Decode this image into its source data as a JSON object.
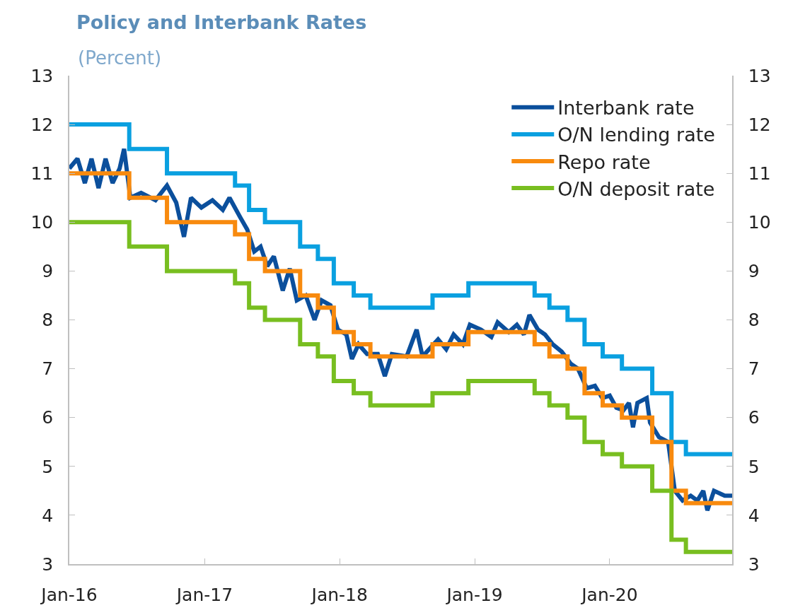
{
  "chart_data": {
    "type": "line",
    "title": "Policy and Interbank Rates",
    "subtitle": "(Percent)",
    "xlim": [
      "2016-01-01",
      "2020-11-27"
    ],
    "xticks": [
      {
        "value": "2016-01-01",
        "label": "Jan-16"
      },
      {
        "value": "2017-01-01",
        "label": "Jan-17"
      },
      {
        "value": "2018-01-01",
        "label": "Jan-18"
      },
      {
        "value": "2019-01-01",
        "label": "Jan-19"
      },
      {
        "value": "2020-01-01",
        "label": "Jan-20"
      }
    ],
    "ylim": [
      3,
      13
    ],
    "yticks": [
      3,
      4,
      5,
      6,
      7,
      8,
      9,
      10,
      11,
      12,
      13
    ],
    "y2lim": [
      3,
      13
    ],
    "y2ticks": [
      3,
      4,
      5,
      6,
      7,
      8,
      9,
      10,
      11,
      12,
      13
    ],
    "grid": false,
    "legend": "top right",
    "marker": "none",
    "line_style": "solid",
    "series": [
      {
        "name": "Interbank rate",
        "type": "line",
        "color": "#0b4f9c",
        "x": [
          "2016-01-01",
          "2016-01-23",
          "2016-02-12",
          "2016-03-01",
          "2016-03-20",
          "2016-04-08",
          "2016-04-27",
          "2016-05-16",
          "2016-05-28",
          "2016-06-14",
          "2016-07-13",
          "2016-08-21",
          "2016-09-21",
          "2016-10-16",
          "2016-11-06",
          "2016-11-25",
          "2016-12-23",
          "2017-01-22",
          "2017-02-19",
          "2017-03-09",
          "2017-04-07",
          "2017-04-26",
          "2017-05-15",
          "2017-06-01",
          "2017-06-19",
          "2017-07-07",
          "2017-07-31",
          "2017-08-19",
          "2017-09-07",
          "2017-10-01",
          "2017-10-25",
          "2017-11-13",
          "2017-12-07",
          "2017-12-27",
          "2018-01-19",
          "2018-02-03",
          "2018-02-21",
          "2018-03-16",
          "2018-04-14",
          "2018-05-03",
          "2018-05-22",
          "2018-07-01",
          "2018-07-28",
          "2018-08-13",
          "2018-09-24",
          "2018-10-16",
          "2018-11-05",
          "2018-11-30",
          "2018-12-19",
          "2019-01-18",
          "2019-02-15",
          "2019-03-04",
          "2019-04-03",
          "2019-04-25",
          "2019-05-14",
          "2019-05-29",
          "2019-06-21",
          "2019-07-10",
          "2019-07-31",
          "2019-08-24",
          "2019-09-18",
          "2019-10-07",
          "2019-10-31",
          "2019-11-22",
          "2019-12-12",
          "2020-01-01",
          "2020-01-19",
          "2020-02-07",
          "2020-02-22",
          "2020-03-04",
          "2020-03-16",
          "2020-04-10",
          "2020-04-19",
          "2020-05-13",
          "2020-06-07",
          "2020-06-25",
          "2020-07-16",
          "2020-08-07",
          "2020-08-25",
          "2020-09-10",
          "2020-09-21",
          "2020-10-09",
          "2020-11-07",
          "2020-11-27"
        ],
        "values": [
          11.1,
          11.3,
          10.8,
          11.3,
          10.7,
          11.3,
          10.8,
          11.1,
          11.5,
          10.5,
          10.6,
          10.45,
          10.75,
          10.4,
          9.7,
          10.5,
          10.3,
          10.45,
          10.25,
          10.5,
          10.1,
          9.85,
          9.4,
          9.5,
          9.1,
          9.3,
          8.6,
          9.05,
          8.4,
          8.5,
          8.0,
          8.4,
          8.3,
          7.8,
          7.7,
          7.2,
          7.5,
          7.3,
          7.3,
          6.85,
          7.3,
          7.25,
          7.8,
          7.25,
          7.6,
          7.4,
          7.7,
          7.5,
          7.9,
          7.8,
          7.65,
          7.95,
          7.75,
          7.9,
          7.7,
          8.1,
          7.8,
          7.7,
          7.5,
          7.35,
          7.1,
          7.0,
          6.6,
          6.65,
          6.4,
          6.45,
          6.2,
          6.15,
          6.3,
          5.8,
          6.3,
          6.4,
          5.9,
          5.6,
          5.5,
          4.5,
          4.3,
          4.4,
          4.3,
          4.5,
          4.1,
          4.5,
          4.4,
          4.4
        ]
      },
      {
        "name": "O/N lending rate",
        "type": "step",
        "color": "#0aa0e0",
        "x": [
          "2016-01-01",
          "2016-06-11",
          "2016-09-21",
          "2017-03-24",
          "2017-05-01",
          "2017-06-13",
          "2017-09-16",
          "2017-11-03",
          "2017-12-16",
          "2018-02-08",
          "2018-03-25",
          "2018-09-09",
          "2018-12-15",
          "2019-06-12",
          "2019-07-22",
          "2019-09-09",
          "2019-10-25",
          "2019-12-13",
          "2020-02-03",
          "2020-04-25",
          "2020-06-16",
          "2020-07-25",
          "2020-11-27"
        ],
        "values": [
          12,
          11.5,
          11,
          10.75,
          10.25,
          10,
          9.5,
          9.25,
          8.75,
          8.5,
          8.25,
          8.5,
          8.75,
          8.5,
          8.25,
          8,
          7.5,
          7.25,
          7,
          6.5,
          5.5,
          5.25,
          5.25
        ]
      },
      {
        "name": "Repo rate",
        "type": "step",
        "color": "#f88a0e",
        "x": [
          "2016-01-01",
          "2016-06-11",
          "2016-09-21",
          "2017-03-24",
          "2017-05-01",
          "2017-06-13",
          "2017-09-16",
          "2017-11-03",
          "2017-12-16",
          "2018-02-08",
          "2018-03-25",
          "2018-09-09",
          "2018-12-15",
          "2019-06-12",
          "2019-07-22",
          "2019-09-09",
          "2019-10-25",
          "2019-12-13",
          "2020-02-03",
          "2020-04-25",
          "2020-06-16",
          "2020-07-25",
          "2020-11-27"
        ],
        "values": [
          11,
          10.5,
          10,
          9.75,
          9.25,
          9,
          8.5,
          8.25,
          7.75,
          7.5,
          7.25,
          7.5,
          7.75,
          7.5,
          7.25,
          7,
          6.5,
          6.25,
          6,
          5.5,
          4.5,
          4.25,
          4.25
        ]
      },
      {
        "name": "O/N deposit rate",
        "type": "step",
        "color": "#78be20",
        "x": [
          "2016-01-01",
          "2016-06-11",
          "2016-09-21",
          "2017-03-24",
          "2017-05-01",
          "2017-06-13",
          "2017-09-16",
          "2017-11-03",
          "2017-12-16",
          "2018-02-08",
          "2018-03-25",
          "2018-09-09",
          "2018-12-15",
          "2019-06-12",
          "2019-07-22",
          "2019-09-09",
          "2019-10-25",
          "2019-12-13",
          "2020-02-03",
          "2020-04-25",
          "2020-06-16",
          "2020-07-25",
          "2020-11-27"
        ],
        "values": [
          10,
          9.5,
          9,
          8.75,
          8.25,
          8,
          7.5,
          7.25,
          6.75,
          6.5,
          6.25,
          6.5,
          6.75,
          6.5,
          6.25,
          6,
          5.5,
          5.25,
          5,
          4.5,
          3.5,
          3.25,
          3.25
        ]
      }
    ]
  }
}
